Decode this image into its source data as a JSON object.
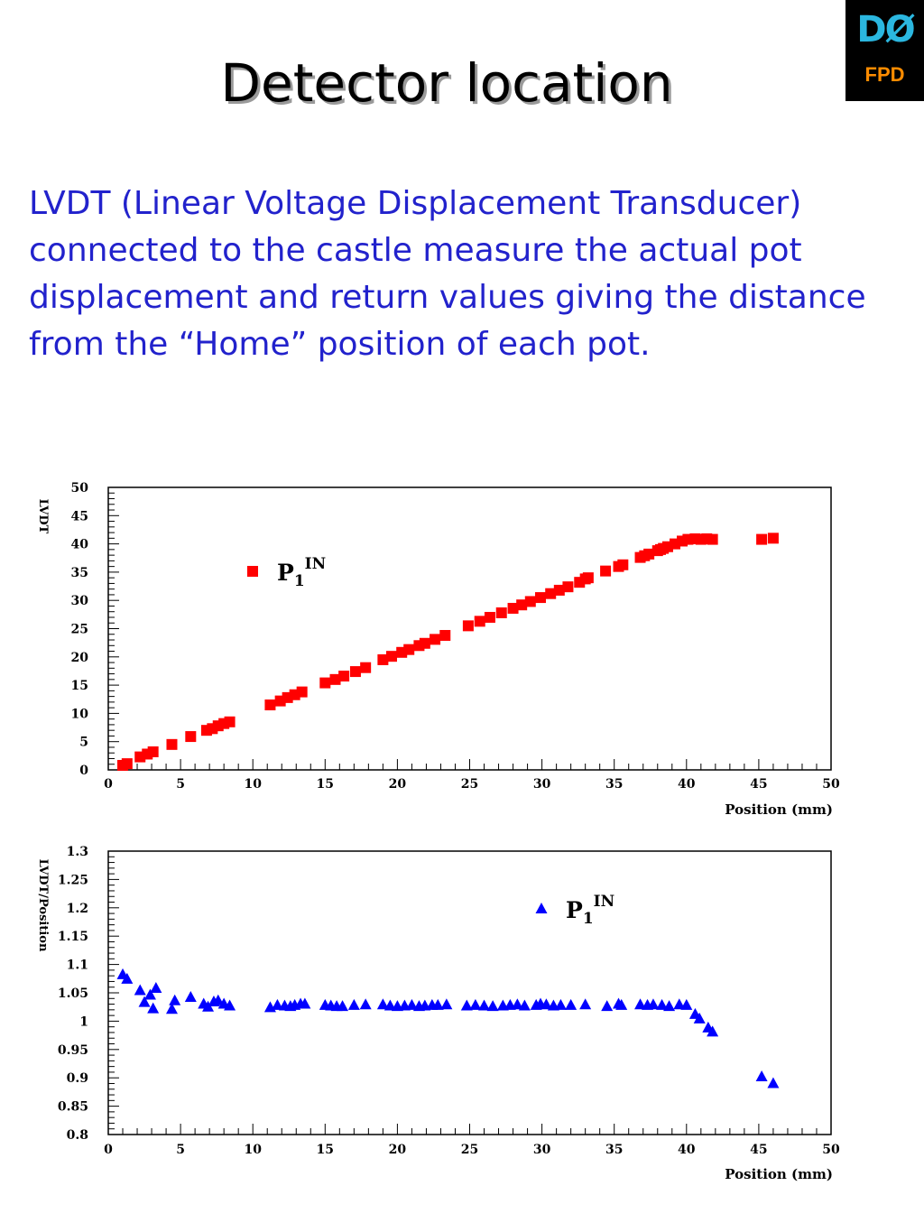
{
  "slide": {
    "title": "Detector location",
    "logo_text": "DØ",
    "logo_sub": "FPD",
    "body": "LVDT (Linear Voltage Displacement Transducer) connected to the castle measure the actual pot displacement and return values giving the distance from the “Home” position of each pot."
  },
  "chart_data": [
    {
      "type": "scatter",
      "title": "",
      "xlabel": "Position (mm)",
      "ylabel": "LVDT",
      "xlim": [
        0,
        50
      ],
      "ylim": [
        0,
        50
      ],
      "xticks": [
        0,
        5,
        10,
        15,
        20,
        25,
        30,
        35,
        40,
        45,
        50
      ],
      "yticks": [
        0,
        5,
        10,
        15,
        20,
        25,
        30,
        35,
        40,
        45,
        50
      ],
      "ytick_labels": [
        "0",
        "5",
        "10",
        "15",
        "20",
        "25",
        "30",
        "35",
        "40",
        "45",
        "50"
      ],
      "legend": {
        "label": "P",
        "sub": "1",
        "sup": "IN",
        "position": "upper-left"
      },
      "marker": "square",
      "color": "#ff0000",
      "series": [
        {
          "name": "P1 IN",
          "x": [
            1.0,
            1.3,
            2.2,
            2.7,
            3.1,
            4.4,
            5.7,
            6.8,
            7.2,
            7.6,
            8.0,
            8.4,
            11.2,
            11.9,
            12.4,
            12.9,
            13.4,
            15.0,
            15.7,
            16.3,
            17.1,
            17.8,
            19.0,
            19.6,
            20.3,
            20.8,
            21.5,
            21.9,
            22.6,
            23.3,
            24.9,
            25.7,
            26.4,
            27.2,
            28.0,
            28.6,
            29.2,
            29.9,
            30.6,
            31.2,
            31.8,
            32.6,
            33.0,
            33.2,
            34.4,
            35.3,
            35.6,
            36.8,
            37.1,
            37.4,
            38.0,
            38.2,
            38.4,
            38.7,
            39.2,
            39.7,
            40.1,
            40.6,
            41.0,
            41.4,
            41.8,
            45.2,
            46.0
          ],
          "y": [
            0.8,
            1.1,
            2.3,
            2.8,
            3.2,
            4.5,
            5.9,
            7.0,
            7.3,
            7.8,
            8.2,
            8.5,
            11.5,
            12.2,
            12.8,
            13.3,
            13.8,
            15.4,
            16.0,
            16.6,
            17.4,
            18.1,
            19.5,
            20.1,
            20.8,
            21.3,
            22.0,
            22.4,
            23.1,
            23.8,
            25.5,
            26.3,
            27.0,
            27.8,
            28.6,
            29.2,
            29.8,
            30.5,
            31.2,
            31.8,
            32.4,
            33.2,
            33.8,
            34.0,
            35.2,
            36.0,
            36.3,
            37.6,
            37.9,
            38.2,
            38.8,
            39.0,
            39.2,
            39.5,
            40.0,
            40.5,
            40.8,
            40.9,
            40.8,
            40.9,
            40.8,
            40.8,
            41.0
          ]
        }
      ]
    },
    {
      "type": "scatter",
      "title": "",
      "xlabel": "Position (mm)",
      "ylabel": "LVDT/Position",
      "xlim": [
        0,
        50
      ],
      "ylim": [
        0.8,
        1.3
      ],
      "xticks": [
        0,
        5,
        10,
        15,
        20,
        25,
        30,
        35,
        40,
        45,
        50
      ],
      "yticks": [
        0.8,
        0.85,
        0.9,
        0.95,
        1.0,
        1.05,
        1.1,
        1.15,
        1.2,
        1.25,
        1.3
      ],
      "ytick_labels": [
        "0.8",
        "0.85",
        "0.9",
        "0.95",
        "1",
        "1.05",
        "1.1",
        "1.15",
        "1.2",
        "1.25",
        "1.3"
      ],
      "legend": {
        "label": "P",
        "sub": "1",
        "sup": "IN",
        "position": "upper-right"
      },
      "marker": "triangle",
      "color": "#0000ff",
      "series": [
        {
          "name": "P1 IN",
          "x": [
            1.0,
            1.3,
            2.2,
            2.5,
            2.9,
            3.1,
            3.3,
            4.4,
            4.6,
            5.7,
            6.6,
            6.9,
            7.3,
            7.6,
            8.0,
            8.4,
            11.2,
            11.7,
            12.2,
            12.6,
            12.9,
            13.3,
            13.6,
            15.0,
            15.4,
            15.8,
            16.2,
            17.0,
            17.8,
            19.0,
            19.5,
            20.0,
            20.5,
            21.0,
            21.5,
            21.9,
            22.4,
            22.8,
            23.4,
            24.8,
            25.4,
            26.0,
            26.6,
            27.3,
            27.8,
            28.3,
            28.8,
            29.6,
            29.9,
            30.3,
            30.8,
            31.3,
            32.0,
            33.0,
            34.5,
            35.3,
            35.5,
            36.8,
            37.3,
            37.7,
            38.3,
            38.8,
            39.5,
            40.0,
            40.6,
            40.9,
            41.5,
            41.8,
            45.2,
            46.0
          ],
          "y": [
            1.082,
            1.074,
            1.054,
            1.033,
            1.046,
            1.022,
            1.058,
            1.021,
            1.036,
            1.042,
            1.03,
            1.025,
            1.034,
            1.036,
            1.03,
            1.027,
            1.024,
            1.028,
            1.027,
            1.026,
            1.028,
            1.03,
            1.03,
            1.028,
            1.027,
            1.026,
            1.026,
            1.028,
            1.029,
            1.029,
            1.027,
            1.026,
            1.027,
            1.028,
            1.026,
            1.027,
            1.028,
            1.028,
            1.029,
            1.027,
            1.028,
            1.027,
            1.026,
            1.027,
            1.028,
            1.029,
            1.027,
            1.028,
            1.03,
            1.029,
            1.027,
            1.028,
            1.028,
            1.029,
            1.026,
            1.03,
            1.028,
            1.029,
            1.028,
            1.029,
            1.028,
            1.026,
            1.029,
            1.028,
            1.012,
            1.004,
            0.988,
            0.981,
            0.902,
            0.89
          ]
        }
      ]
    }
  ]
}
